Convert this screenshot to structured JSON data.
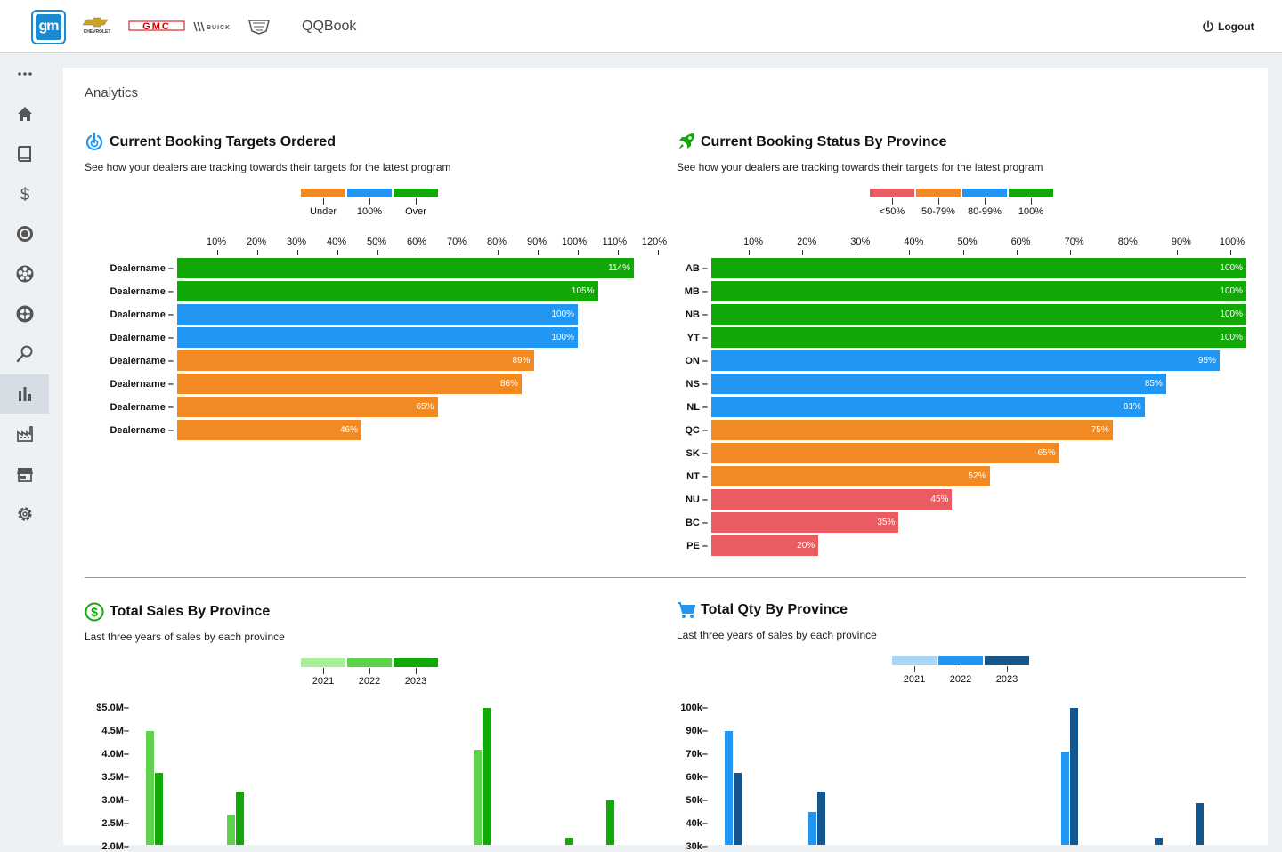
{
  "header": {
    "logo_text": "gm",
    "brands": [
      "CHEVROLET",
      "GMC",
      "BUICK",
      "CADILLAC"
    ],
    "app_title": "QQBook",
    "logout_label": "Logout"
  },
  "sidebar": {
    "items": [
      {
        "icon": "more-horizontal-icon"
      },
      {
        "icon": "home-icon"
      },
      {
        "icon": "book-icon"
      },
      {
        "icon": "dollar-icon"
      },
      {
        "icon": "target-icon"
      },
      {
        "icon": "wheel-icon"
      },
      {
        "icon": "tire-icon"
      },
      {
        "icon": "search-icon"
      },
      {
        "icon": "bar-chart-icon",
        "active": true
      },
      {
        "icon": "factory-icon"
      },
      {
        "icon": "store-icon"
      },
      {
        "icon": "gear-icon"
      }
    ]
  },
  "page": {
    "title": "Analytics"
  },
  "colors": {
    "green": "#12a806",
    "blue": "#2196f3",
    "orange": "#f28a24",
    "red": "#ea5b62",
    "green_light": "#a6ef95",
    "green_mid": "#5fd24c",
    "green_dark": "#12a806",
    "blue_light": "#a8d6f8",
    "blue_mid": "#2196f3",
    "blue_dark": "#14568e"
  },
  "sections": {
    "targets": {
      "title": "Current Booking Targets Ordered",
      "subtitle": "See how your dealers are tracking towards their targets for the latest program"
    },
    "status": {
      "title": "Current Booking Status By Province",
      "subtitle": "See how your dealers are tracking towards their targets for the latest program"
    },
    "sales": {
      "title": "Total Sales By Province",
      "subtitle": "Last three years of sales by each province"
    },
    "qty": {
      "title": "Total Qty By Province",
      "subtitle": "Last three years of sales by each province"
    }
  },
  "chart_data": [
    {
      "type": "bar",
      "orientation": "horizontal",
      "title": "Current Booking Targets Ordered",
      "legend": [
        {
          "label": "Under",
          "color": "#f28a24"
        },
        {
          "label": "100%",
          "color": "#2196f3"
        },
        {
          "label": "Over",
          "color": "#12a806"
        }
      ],
      "x_ticks": [
        "10%",
        "20%",
        "30%",
        "40%",
        "50%",
        "60%",
        "70%",
        "80%",
        "90%",
        "100%",
        "110%",
        "120%"
      ],
      "xlim": [
        0,
        120
      ],
      "categories": [
        "Dealername",
        "Dealername",
        "Dealername",
        "Dealername",
        "Dealername",
        "Dealername",
        "Dealername",
        "Dealername"
      ],
      "values": [
        114,
        105,
        100,
        100,
        89,
        86,
        65,
        46
      ],
      "value_labels": [
        "114%",
        "105%",
        "100%",
        "100%",
        "89%",
        "86%",
        "65%",
        "46%"
      ],
      "bar_colors": [
        "#12a806",
        "#12a806",
        "#2196f3",
        "#2196f3",
        "#f28a24",
        "#f28a24",
        "#f28a24",
        "#f28a24"
      ]
    },
    {
      "type": "bar",
      "orientation": "horizontal",
      "title": "Current Booking Status By Province",
      "legend": [
        {
          "label": "<50%",
          "color": "#ea5b62"
        },
        {
          "label": "50-79%",
          "color": "#f28a24"
        },
        {
          "label": "80-99%",
          "color": "#2196f3"
        },
        {
          "label": "100%",
          "color": "#12a806"
        }
      ],
      "x_ticks": [
        "10%",
        "20%",
        "30%",
        "40%",
        "50%",
        "60%",
        "70%",
        "80%",
        "90%",
        "100%"
      ],
      "xlim": [
        0,
        100
      ],
      "categories": [
        "AB",
        "MB",
        "NB",
        "YT",
        "ON",
        "NS",
        "NL",
        "QC",
        "SK",
        "NT",
        "NU",
        "BC",
        "PE"
      ],
      "values": [
        100,
        100,
        100,
        100,
        95,
        85,
        81,
        75,
        65,
        52,
        45,
        35,
        20
      ],
      "value_labels": [
        "100%",
        "100%",
        "100%",
        "100%",
        "95%",
        "85%",
        "81%",
        "75%",
        "65%",
        "52%",
        "45%",
        "35%",
        "20%"
      ],
      "bar_colors": [
        "#12a806",
        "#12a806",
        "#12a806",
        "#12a806",
        "#2196f3",
        "#2196f3",
        "#2196f3",
        "#f28a24",
        "#f28a24",
        "#f28a24",
        "#ea5b62",
        "#ea5b62",
        "#ea5b62"
      ]
    },
    {
      "type": "bar",
      "orientation": "vertical",
      "title": "Total Sales By Province",
      "legend": [
        {
          "label": "2021",
          "color": "#a6ef95"
        },
        {
          "label": "2022",
          "color": "#5fd24c"
        },
        {
          "label": "2023",
          "color": "#12a806"
        }
      ],
      "y_ticks": [
        "$5.0M",
        "4.5M",
        "4.0M",
        "3.5M",
        "3.0M",
        "2.5M",
        "2.0M"
      ],
      "y_tick_values": [
        5.0,
        4.5,
        4.0,
        3.5,
        3.0,
        2.5,
        2.0
      ],
      "groups": [
        {
          "bars": [
            {
              "series": "2022",
              "value": 4.5
            },
            {
              "series": "2023",
              "value": 3.6
            }
          ]
        },
        {
          "bars": [
            {
              "series": "2022",
              "value": 2.7
            },
            {
              "series": "2023",
              "value": 3.2
            }
          ]
        },
        {
          "bars": [
            {
              "series": "2022",
              "value": 4.1
            },
            {
              "series": "2023",
              "value": 5.0
            }
          ]
        },
        {
          "bars": [
            {
              "series": "2023",
              "value": 2.2
            }
          ]
        },
        {
          "bars": [
            {
              "series": "2023",
              "value": 3.0
            }
          ]
        }
      ]
    },
    {
      "type": "bar",
      "orientation": "vertical",
      "title": "Total Qty By Province",
      "legend": [
        {
          "label": "2021",
          "color": "#a8d6f8"
        },
        {
          "label": "2022",
          "color": "#2196f3"
        },
        {
          "label": "2023",
          "color": "#14568e"
        }
      ],
      "y_ticks": [
        "100k",
        "90k",
        "70k",
        "60k",
        "50k",
        "40k",
        "30k"
      ],
      "groups": [
        {
          "bars": [
            {
              "series": "2022",
              "value": 90
            },
            {
              "series": "2023",
              "value": 62
            }
          ]
        },
        {
          "bars": [
            {
              "series": "2022",
              "value": 45
            },
            {
              "series": "2023",
              "value": 54
            }
          ]
        },
        {
          "bars": [
            {
              "series": "2022",
              "value": 72
            },
            {
              "series": "2023",
              "value": 100
            }
          ]
        },
        {
          "bars": [
            {
              "series": "2023",
              "value": 34
            }
          ]
        },
        {
          "bars": [
            {
              "series": "2023",
              "value": 49
            }
          ]
        }
      ]
    }
  ]
}
